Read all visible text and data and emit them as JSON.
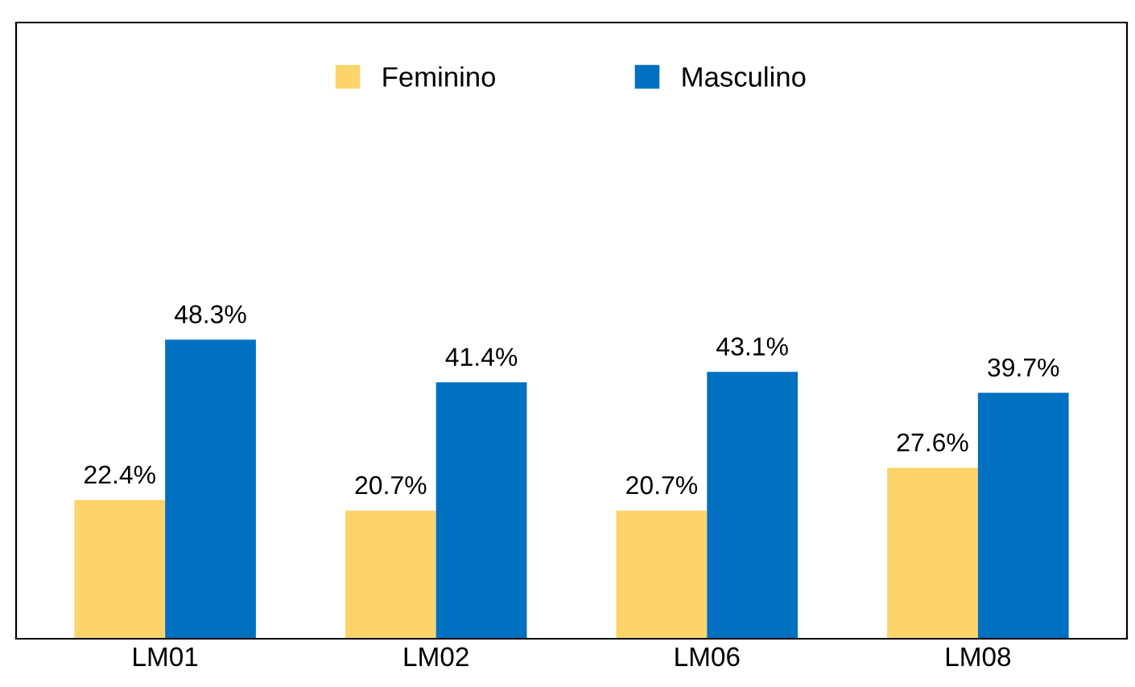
{
  "chart_data": {
    "type": "bar",
    "categories": [
      "LM01",
      "LM02",
      "LM06",
      "LM08"
    ],
    "series": [
      {
        "name": "Feminino",
        "color": "#fcd46a",
        "values": [
          22.4,
          20.7,
          20.7,
          27.6
        ],
        "value_labels": [
          "22.4%",
          "20.7%",
          "20.7%",
          "27.6%"
        ]
      },
      {
        "name": "Masculino",
        "color": "#0070c0",
        "values": [
          48.3,
          41.4,
          43.1,
          39.7
        ],
        "value_labels": [
          "48.3%",
          "41.4%",
          "43.1%",
          "39.7%"
        ]
      }
    ],
    "legend": "top",
    "tick_labels": "x"
  }
}
